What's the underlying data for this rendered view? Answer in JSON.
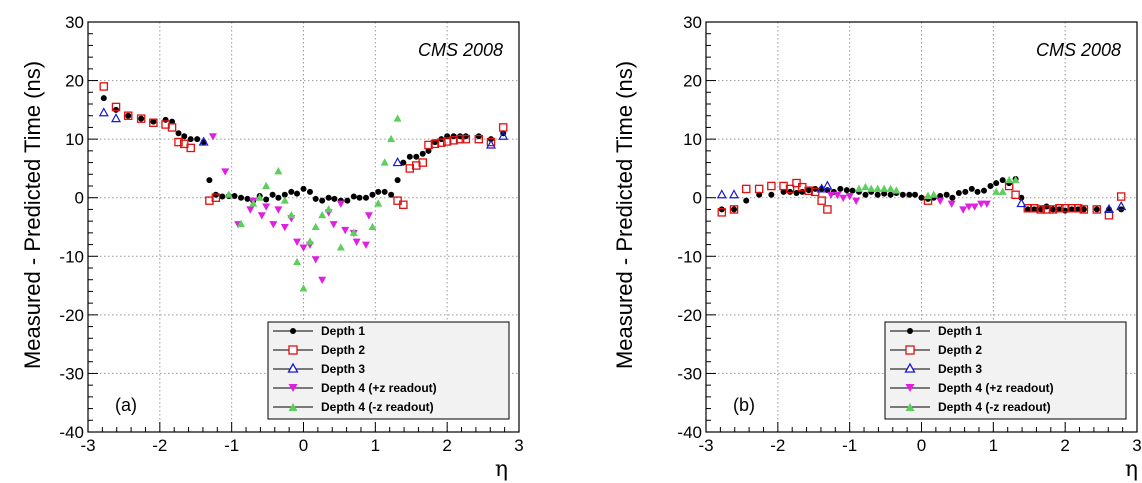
{
  "colors": {
    "depth1": "#000000",
    "depth2": "#e01010",
    "depth3": "#1a1ad0",
    "depth4_plus": "#e020e0",
    "depth4_minus": "#5ccf5c",
    "grid": "#9a9a9a",
    "legend_bg": "#f2f2f2"
  },
  "chart_data": [
    {
      "type": "scatter",
      "panel_label": "(a)",
      "watermark": "CMS 2008",
      "xlabel": "η",
      "ylabel": "Measured - Predicted Time (ns)",
      "xlim": [
        -3,
        3
      ],
      "ylim": [
        -40,
        30
      ],
      "xticks": [
        -3,
        -2,
        -1,
        0,
        1,
        2,
        3
      ],
      "yticks": [
        -40,
        -30,
        -20,
        -10,
        0,
        10,
        20,
        30
      ],
      "grid": true,
      "legend_position": "bottom-right",
      "series": [
        {
          "name": "Depth 1",
          "marker": "filled-circle",
          "points": [
            [
              -2.78,
              17
            ],
            [
              -2.61,
              15
            ],
            [
              -2.44,
              14
            ],
            [
              -2.26,
              13.5
            ],
            [
              -2.09,
              13
            ],
            [
              -1.92,
              13.3
            ],
            [
              -1.83,
              13
            ],
            [
              -1.74,
              11
            ],
            [
              -1.66,
              10.5
            ],
            [
              -1.57,
              10
            ],
            [
              -1.48,
              10
            ],
            [
              -1.39,
              9.5
            ],
            [
              -1.31,
              3
            ],
            [
              -1.22,
              0.5
            ],
            [
              -1.13,
              0.2
            ],
            [
              -1.04,
              0.3
            ],
            [
              -0.96,
              0.3
            ],
            [
              -0.87,
              0
            ],
            [
              -0.78,
              -0.2
            ],
            [
              -0.7,
              -0.5
            ],
            [
              -0.61,
              0.3
            ],
            [
              -0.52,
              -0.3
            ],
            [
              -0.43,
              0.5
            ],
            [
              -0.35,
              0
            ],
            [
              -0.26,
              0.5
            ],
            [
              -0.17,
              1
            ],
            [
              -0.09,
              0.7
            ],
            [
              0,
              1.5
            ],
            [
              0.09,
              1
            ],
            [
              0.17,
              -0.2
            ],
            [
              0.26,
              -0.5
            ],
            [
              0.35,
              0
            ],
            [
              0.43,
              -0.2
            ],
            [
              0.52,
              -0.5
            ],
            [
              0.61,
              -0.5
            ],
            [
              0.7,
              0.2
            ],
            [
              0.78,
              0
            ],
            [
              0.87,
              0
            ],
            [
              0.96,
              0.5
            ],
            [
              1.04,
              1
            ],
            [
              1.13,
              1
            ],
            [
              1.22,
              0.5
            ],
            [
              1.31,
              3
            ],
            [
              1.39,
              6
            ],
            [
              1.48,
              7
            ],
            [
              1.57,
              7
            ],
            [
              1.66,
              7.5
            ],
            [
              1.74,
              8
            ],
            [
              1.83,
              9.5
            ],
            [
              1.92,
              10
            ],
            [
              2.0,
              10.5
            ],
            [
              2.09,
              10.5
            ],
            [
              2.18,
              10.5
            ],
            [
              2.26,
              10.5
            ],
            [
              2.44,
              10.5
            ],
            [
              2.61,
              10
            ],
            [
              2.78,
              11
            ]
          ]
        },
        {
          "name": "Depth 2",
          "marker": "open-square",
          "points": [
            [
              -2.78,
              19
            ],
            [
              -2.61,
              15.5
            ],
            [
              -2.44,
              14
            ],
            [
              -2.26,
              13.5
            ],
            [
              -2.09,
              12.8
            ],
            [
              -1.92,
              12.5
            ],
            [
              -1.83,
              12
            ],
            [
              -1.74,
              9.5
            ],
            [
              -1.66,
              9.2
            ],
            [
              -1.57,
              8.5
            ],
            [
              -1.31,
              -0.5
            ],
            [
              -1.22,
              0
            ],
            [
              1.31,
              -0.5
            ],
            [
              1.39,
              -1.2
            ],
            [
              1.48,
              5
            ],
            [
              1.57,
              5.5
            ],
            [
              1.66,
              6
            ],
            [
              1.74,
              9
            ],
            [
              1.83,
              9.2
            ],
            [
              1.92,
              9.4
            ],
            [
              2.0,
              9.6
            ],
            [
              2.09,
              9.8
            ],
            [
              2.18,
              10
            ],
            [
              2.26,
              10
            ],
            [
              2.44,
              10
            ],
            [
              2.61,
              9.5
            ],
            [
              2.78,
              12
            ]
          ]
        },
        {
          "name": "Depth 3",
          "marker": "open-triangle-up",
          "points": [
            [
              -2.78,
              14.5
            ],
            [
              -2.61,
              13.5
            ],
            [
              -1.39,
              9.5
            ],
            [
              1.31,
              6
            ],
            [
              2.61,
              9
            ],
            [
              2.78,
              10.5
            ]
          ]
        },
        {
          "name": "Depth 4 (+z readout)",
          "marker": "triangle-down",
          "points": [
            [
              -1.26,
              10.5
            ],
            [
              -1.09,
              4.5
            ],
            [
              -0.91,
              -4.5
            ],
            [
              -0.74,
              -2
            ],
            [
              -0.58,
              -3
            ],
            [
              -0.42,
              -4.5
            ],
            [
              -0.26,
              -5
            ],
            [
              -0.09,
              -7.5
            ],
            [
              0.09,
              -8
            ],
            [
              0.26,
              -14
            ],
            [
              0.42,
              -4.5
            ],
            [
              0.58,
              -5.5
            ],
            [
              0.74,
              -7.5
            ],
            [
              0.91,
              -3
            ],
            [
              -0.17,
              -3.5
            ],
            [
              0.17,
              -10.5
            ],
            [
              0.35,
              -2.5
            ],
            [
              -0.35,
              -2
            ],
            [
              0.52,
              -1
            ],
            [
              0.7,
              -6
            ],
            [
              0.87,
              -8
            ],
            [
              0,
              -8.5
            ],
            [
              -0.52,
              -1.5
            ],
            [
              -0.7,
              -0.5
            ]
          ]
        },
        {
          "name": "Depth 4 (-z readout)",
          "marker": "filled-triangle-up",
          "points": [
            [
              -0.87,
              -4.5
            ],
            [
              -0.7,
              -1
            ],
            [
              -0.52,
              2
            ],
            [
              -0.35,
              4.5
            ],
            [
              -0.17,
              -3
            ],
            [
              0,
              -15.5
            ],
            [
              -0.09,
              -11
            ],
            [
              0.09,
              -7.5
            ],
            [
              0.17,
              -5
            ],
            [
              0.26,
              -3
            ],
            [
              0.35,
              -2
            ],
            [
              0.52,
              -8.5
            ],
            [
              0.7,
              -6
            ],
            [
              0.96,
              -5
            ],
            [
              1.04,
              -1
            ],
            [
              1.22,
              10
            ],
            [
              1.31,
              13.5
            ],
            [
              1.13,
              6
            ],
            [
              -1.04,
              0.5
            ],
            [
              -0.61,
              0
            ],
            [
              -0.26,
              -0.5
            ]
          ]
        }
      ]
    },
    {
      "type": "scatter",
      "panel_label": "(b)",
      "watermark": "CMS 2008",
      "xlabel": "η",
      "ylabel": "Measured - Predicted Time (ns)",
      "xlim": [
        -3,
        3
      ],
      "ylim": [
        -40,
        30
      ],
      "xticks": [
        -3,
        -2,
        -1,
        0,
        1,
        2,
        3
      ],
      "yticks": [
        -40,
        -30,
        -20,
        -10,
        0,
        10,
        20,
        30
      ],
      "grid": true,
      "legend_position": "bottom-right",
      "series": [
        {
          "name": "Depth 1",
          "marker": "filled-circle",
          "points": [
            [
              -2.78,
              -2
            ],
            [
              -2.61,
              -2
            ],
            [
              -2.44,
              -0.5
            ],
            [
              -2.26,
              0.5
            ],
            [
              -2.09,
              0.5
            ],
            [
              -1.92,
              1
            ],
            [
              -1.83,
              1
            ],
            [
              -1.74,
              0.8
            ],
            [
              -1.66,
              1
            ],
            [
              -1.57,
              1.3
            ],
            [
              -1.48,
              1.5
            ],
            [
              -1.39,
              1.5
            ],
            [
              -1.31,
              1.3
            ],
            [
              -1.22,
              1
            ],
            [
              -1.13,
              1.5
            ],
            [
              -1.04,
              1.3
            ],
            [
              -0.96,
              1.2
            ],
            [
              -0.87,
              1
            ],
            [
              -0.78,
              0.5
            ],
            [
              -0.7,
              1
            ],
            [
              -0.61,
              0.5
            ],
            [
              -0.52,
              0.7
            ],
            [
              -0.43,
              0.5
            ],
            [
              -0.35,
              0.8
            ],
            [
              -0.26,
              0.5
            ],
            [
              -0.17,
              0.5
            ],
            [
              -0.09,
              0.5
            ],
            [
              0,
              0
            ],
            [
              0.09,
              -0.2
            ],
            [
              0.17,
              0
            ],
            [
              0.26,
              0.3
            ],
            [
              0.35,
              0.5
            ],
            [
              0.43,
              0
            ],
            [
              0.52,
              0.8
            ],
            [
              0.61,
              1
            ],
            [
              0.7,
              1.5
            ],
            [
              0.78,
              1
            ],
            [
              0.87,
              1.2
            ],
            [
              0.96,
              2
            ],
            [
              1.04,
              2.5
            ],
            [
              1.13,
              3
            ],
            [
              1.22,
              2.5
            ],
            [
              1.31,
              3.2
            ],
            [
              1.39,
              0
            ],
            [
              1.48,
              -2
            ],
            [
              1.57,
              -2
            ],
            [
              1.66,
              -2
            ],
            [
              1.74,
              -1.5
            ],
            [
              1.83,
              -2
            ],
            [
              1.92,
              -2
            ],
            [
              2.0,
              -2.2
            ],
            [
              2.09,
              -2
            ],
            [
              2.18,
              -2
            ],
            [
              2.26,
              -2
            ],
            [
              2.44,
              -2
            ],
            [
              2.61,
              -2
            ],
            [
              2.78,
              -2
            ]
          ]
        },
        {
          "name": "Depth 2",
          "marker": "open-square",
          "points": [
            [
              -2.78,
              -2.5
            ],
            [
              -2.61,
              -2
            ],
            [
              -2.44,
              1.5
            ],
            [
              -2.26,
              1.5
            ],
            [
              -2.09,
              2
            ],
            [
              -1.92,
              2
            ],
            [
              -1.83,
              1.5
            ],
            [
              -1.74,
              2.5
            ],
            [
              -1.66,
              1.8
            ],
            [
              -1.57,
              1.2
            ],
            [
              -1.48,
              1
            ],
            [
              -1.39,
              -0.5
            ],
            [
              -1.31,
              -2
            ],
            [
              0.09,
              -0.5
            ],
            [
              1.22,
              2
            ],
            [
              1.31,
              0.5
            ],
            [
              1.48,
              -1.8
            ],
            [
              1.57,
              -1.8
            ],
            [
              1.66,
              -2
            ],
            [
              1.74,
              -2
            ],
            [
              1.83,
              -2
            ],
            [
              1.92,
              -1.8
            ],
            [
              2.0,
              -1.8
            ],
            [
              2.09,
              -1.8
            ],
            [
              2.18,
              -1.8
            ],
            [
              2.26,
              -2
            ],
            [
              2.44,
              -2
            ],
            [
              2.61,
              -3
            ],
            [
              2.78,
              0.2
            ]
          ]
        },
        {
          "name": "Depth 3",
          "marker": "open-triangle-up",
          "points": [
            [
              -2.78,
              0.5
            ],
            [
              -2.61,
              0.5
            ],
            [
              -1.39,
              1.5
            ],
            [
              -1.31,
              2
            ],
            [
              1.39,
              -1
            ],
            [
              2.61,
              -2
            ],
            [
              2.78,
              -1.5
            ]
          ]
        },
        {
          "name": "Depth 4 (+z readout)",
          "marker": "triangle-down",
          "points": [
            [
              -1.26,
              0.5
            ],
            [
              -1.09,
              0
            ],
            [
              -0.91,
              -0.5
            ],
            [
              0.26,
              -0.5
            ],
            [
              0.42,
              -1
            ],
            [
              0.58,
              -2
            ],
            [
              0.66,
              -1.5
            ],
            [
              0.74,
              -1.5
            ],
            [
              0.83,
              -1
            ],
            [
              0.91,
              -1
            ],
            [
              -1.17,
              0.5
            ],
            [
              -1.0,
              0.3
            ]
          ]
        },
        {
          "name": "Depth 4 (-z readout)",
          "marker": "filled-triangle-up",
          "points": [
            [
              -0.87,
              1.5
            ],
            [
              -0.78,
              1.8
            ],
            [
              -0.7,
              1.5
            ],
            [
              -0.61,
              1.5
            ],
            [
              -0.52,
              1.5
            ],
            [
              -0.43,
              1.5
            ],
            [
              -0.35,
              1.2
            ],
            [
              0.09,
              0.3
            ],
            [
              0.17,
              0.5
            ],
            [
              1.04,
              1
            ],
            [
              1.13,
              1
            ],
            [
              1.22,
              3
            ],
            [
              1.31,
              3
            ]
          ]
        }
      ]
    }
  ]
}
